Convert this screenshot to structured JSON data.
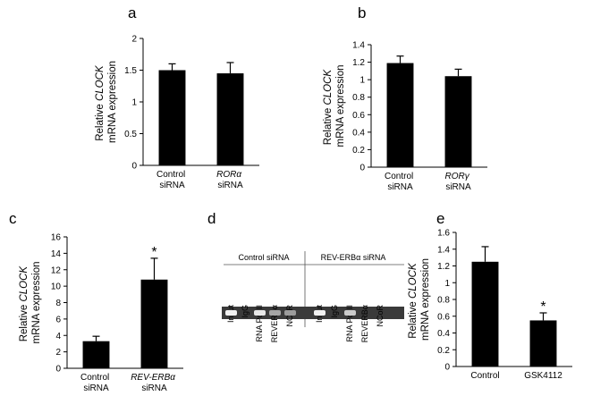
{
  "chart_data": [
    {
      "type": "bar",
      "panel_label": "a",
      "ylabel": "Relative CLOCK mRNA expression",
      "categories": [
        "Control siRNA",
        "RORα siRNA"
      ],
      "values": [
        1.5,
        1.45
      ],
      "errors": [
        0.1,
        0.17
      ],
      "color": "#000000",
      "ylim": [
        0,
        2
      ],
      "yticks": [
        0,
        0.5,
        1,
        1.5,
        2
      ]
    },
    {
      "type": "bar",
      "panel_label": "b",
      "ylabel": "Relative CLOCK mRNA expression",
      "categories": [
        "Control siRNA",
        "RORγ siRNA"
      ],
      "values": [
        1.19,
        1.04
      ],
      "errors": [
        0.08,
        0.08
      ],
      "color": "#000000",
      "ylim": [
        0,
        1.4
      ],
      "yticks": [
        0,
        0.2,
        0.4,
        0.6,
        0.8,
        1,
        1.2,
        1.4
      ]
    },
    {
      "type": "bar",
      "panel_label": "c",
      "ylabel": "Relative CLOCK mRNA expression",
      "categories": [
        "Control siRNA",
        "REV-ERBα siRNA"
      ],
      "values": [
        3.3,
        10.8
      ],
      "errors": [
        0.6,
        2.6
      ],
      "significance": [
        null,
        "*"
      ],
      "color": "#000000",
      "ylim": [
        0,
        16
      ],
      "yticks": [
        0,
        2,
        4,
        6,
        8,
        10,
        12,
        14,
        16
      ]
    },
    {
      "type": "bar",
      "panel_label": "e",
      "ylabel": "Relative CLOCK mRNA expression",
      "categories": [
        "Control",
        "GSK4112"
      ],
      "values": [
        1.25,
        0.55
      ],
      "errors": [
        0.18,
        0.09
      ],
      "significance": [
        null,
        "*"
      ],
      "color": "#000000",
      "ylim": [
        0,
        1.6
      ],
      "yticks": [
        0,
        0.2,
        0.4,
        0.6,
        0.8,
        1,
        1.2,
        1.4,
        1.6
      ]
    }
  ],
  "gel": {
    "panel_label": "d",
    "groups": [
      {
        "name": "Control siRNA",
        "lanes": [
          "Input",
          "IgG",
          "RNA Pol II",
          "REVERBα",
          "NCoR"
        ]
      },
      {
        "name": "REV-ERBα siRNA",
        "lanes": [
          "Input",
          "IgG",
          "RNA Pol II",
          "REVERBα",
          "NCoR"
        ]
      }
    ]
  }
}
